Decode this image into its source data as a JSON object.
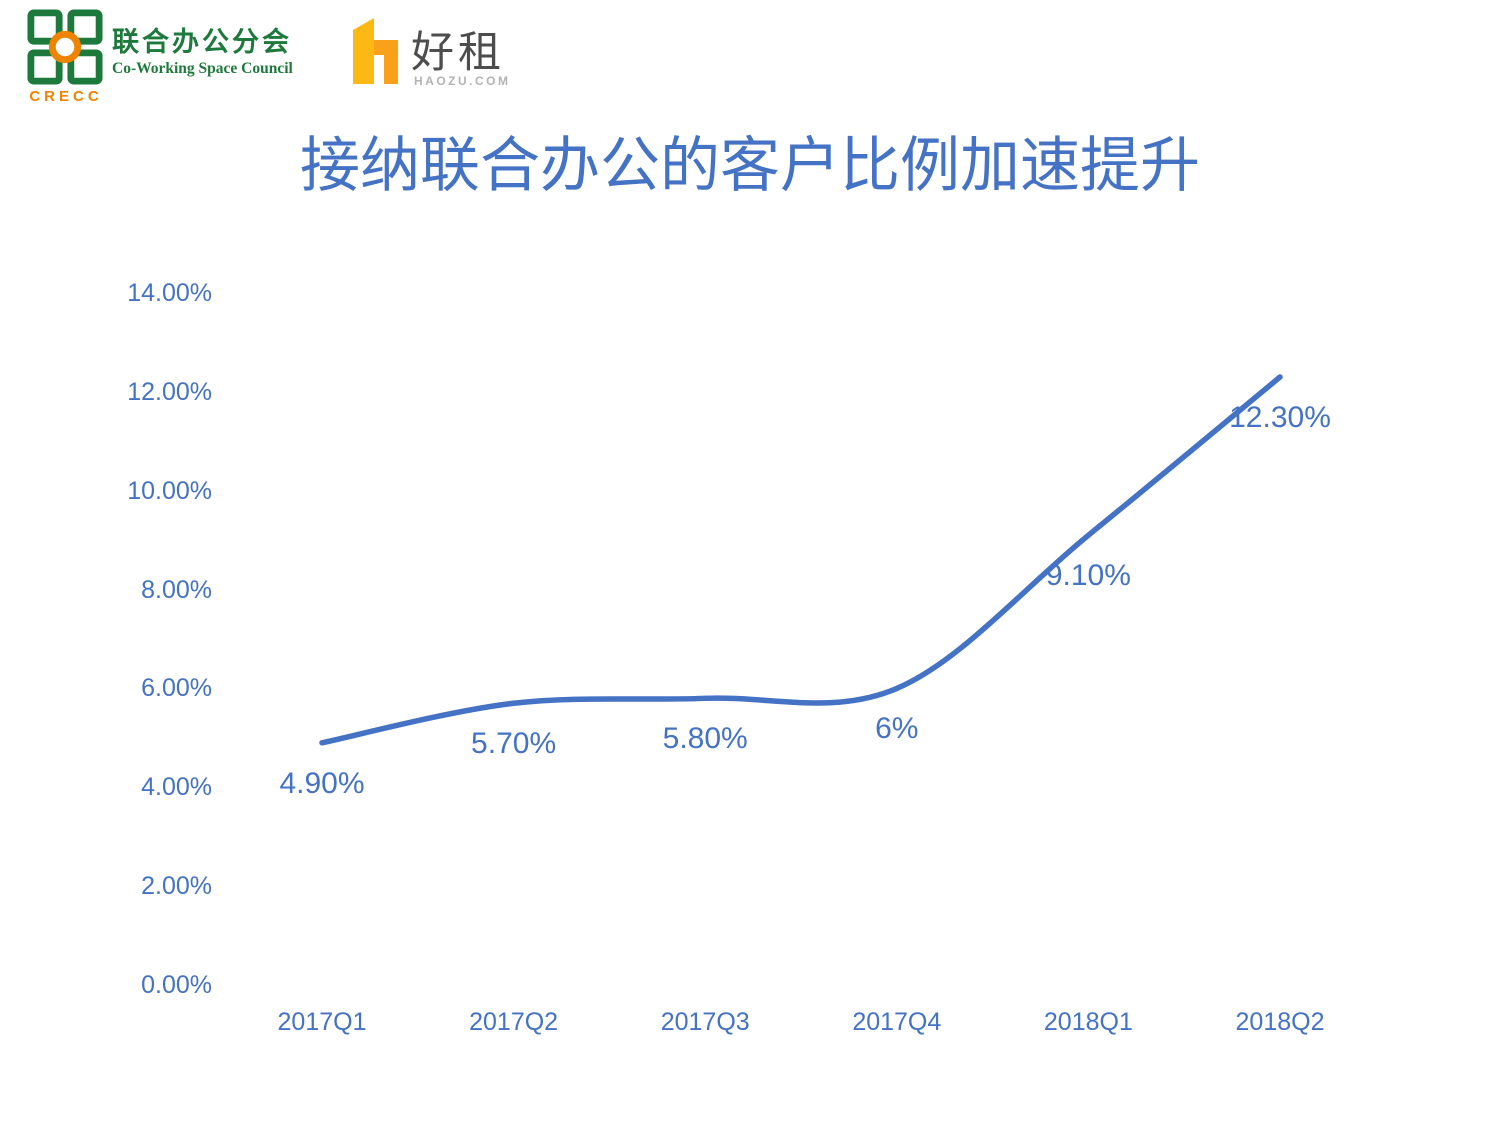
{
  "header": {
    "crecc": {
      "acronym": "CRECC",
      "name_zh": "联合办公分会",
      "name_en": "Co-Working Space Council"
    },
    "haozu": {
      "name_zh": "好租",
      "domain_text": "HAOZU.COM"
    }
  },
  "title": "接纳联合办公的客户比例加速提升",
  "chart_data": {
    "type": "line",
    "title": "接纳联合办公的客户比例加速提升",
    "categories": [
      "2017Q1",
      "2017Q2",
      "2017Q3",
      "2017Q4",
      "2018Q1",
      "2018Q2"
    ],
    "values": [
      4.9,
      5.7,
      5.8,
      6.0,
      9.1,
      12.3
    ],
    "data_labels": [
      "4.90%",
      "5.70%",
      "5.80%",
      "6%",
      "9.10%",
      "12.30%"
    ],
    "y_ticks": [
      "14.00%",
      "12.00%",
      "10.00%",
      "8.00%",
      "6.00%",
      "4.00%",
      "2.00%",
      "0.00%"
    ],
    "y_tick_values": [
      14,
      12,
      10,
      8,
      6,
      4,
      2,
      0
    ],
    "ylim": [
      0,
      14
    ],
    "xlabel": "",
    "ylabel": "",
    "grid": false,
    "legend": "none",
    "line_style": "smooth",
    "line_color": "#4472C4",
    "label_color": "#4472C4"
  },
  "colors": {
    "accent_blue": "#4472C4",
    "crecc_green": "#1E7A3C",
    "crecc_orange": "#F08300",
    "haozu_yellow": "#FDB913",
    "haozu_orange": "#F9A11B"
  }
}
